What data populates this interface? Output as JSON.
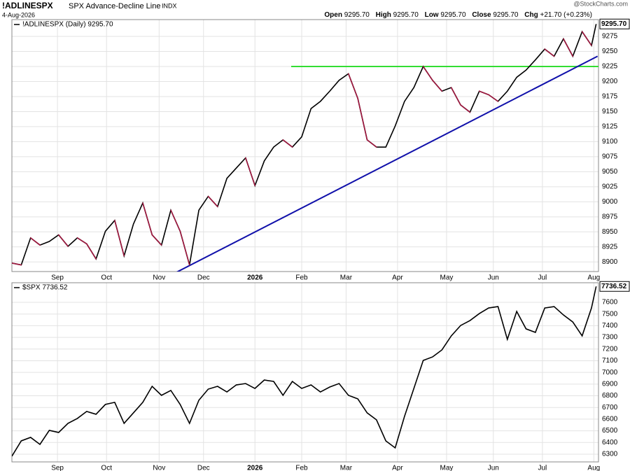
{
  "header": {
    "symbol": "!ADLINESPX",
    "name": "SPX Advance-Decline Line",
    "exchange": "INDX",
    "date": "4-Aug-2026",
    "credit": "@StockCharts.com",
    "quote": [
      {
        "label": "Open",
        "value": "9295.70"
      },
      {
        "label": "High",
        "value": "9295.70"
      },
      {
        "label": "Low",
        "value": "9295.70"
      },
      {
        "label": "Close",
        "value": "9295.70"
      },
      {
        "label": "Chg",
        "value": "+21.70 (+0.23%)"
      }
    ]
  },
  "chart_data": [
    {
      "type": "line",
      "grid": true,
      "xlim": [
        0,
        251
      ],
      "ylim": [
        8884,
        9303
      ],
      "xticks": [
        {
          "value": 19.5,
          "label": "Sep"
        },
        {
          "value": 40.5,
          "label": "Oct"
        },
        {
          "value": 63,
          "label": "Nov"
        },
        {
          "value": 82,
          "label": "Dec"
        },
        {
          "value": 104,
          "label": "2026"
        },
        {
          "value": 124,
          "label": "Feb"
        },
        {
          "value": 143,
          "label": "Mar"
        },
        {
          "value": 165,
          "label": "Apr"
        },
        {
          "value": 186,
          "label": "May"
        },
        {
          "value": 206,
          "label": "Jun"
        },
        {
          "value": 227,
          "label": "Jul"
        },
        {
          "value": 249,
          "label": "Aug"
        }
      ],
      "yticks": [
        8900,
        8925,
        8950,
        8975,
        9000,
        9025,
        9050,
        9075,
        9100,
        9125,
        9150,
        9175,
        9200,
        9225,
        9250,
        9275
      ],
      "last_value_label": "9295.70",
      "series": [
        {
          "name": "!ADLINESPX (Daily) 9295.70",
          "color": "#000000",
          "down_color": "#a0173f",
          "x": [
            0,
            4,
            8,
            12,
            16,
            20,
            24,
            28,
            32,
            36,
            40,
            44,
            48,
            52,
            56,
            60,
            64,
            68,
            72,
            76,
            80,
            84,
            88,
            92,
            96,
            100,
            104,
            108,
            112,
            116,
            120,
            124,
            128,
            132,
            136,
            140,
            144,
            148,
            152,
            156,
            160,
            164,
            168,
            172,
            176,
            180,
            184,
            188,
            192,
            196,
            200,
            204,
            208,
            212,
            216,
            220,
            224,
            228,
            232,
            236,
            240,
            244,
            248,
            250
          ],
          "values": [
            8898,
            8895,
            8940,
            8928,
            8934,
            8945,
            8926,
            8940,
            8930,
            8905,
            8951,
            8969,
            8910,
            8963,
            8998,
            8945,
            8928,
            8986,
            8951,
            8895,
            8986,
            9009,
            8992,
            9039,
            9056,
            9073,
            9027,
            9068,
            9091,
            9103,
            9091,
            9108,
            9155,
            9167,
            9184,
            9202,
            9213,
            9172,
            9103,
            9091,
            9091,
            9126,
            9167,
            9190,
            9225,
            9202,
            9184,
            9190,
            9161,
            9149,
            9184,
            9178,
            9167,
            9184,
            9207,
            9219,
            9236,
            9254,
            9242,
            9271,
            9242,
            9283,
            9260,
            9295.7
          ]
        }
      ],
      "lines": [
        {
          "color": "#33dd33",
          "x": [
            119.5,
            251
          ],
          "values": [
            9225,
            9225
          ]
        },
        {
          "color": "#1010aa",
          "x": [
            68,
            250.6
          ],
          "values": [
            8878,
            9242
          ]
        }
      ]
    },
    {
      "type": "line",
      "grid": true,
      "xlim": [
        0,
        251
      ],
      "ylim": [
        6234,
        7768
      ],
      "xticks": [
        {
          "value": 19.5,
          "label": "Sep"
        },
        {
          "value": 40.5,
          "label": "Oct"
        },
        {
          "value": 63,
          "label": "Nov"
        },
        {
          "value": 82,
          "label": "Dec"
        },
        {
          "value": 104,
          "label": "2026"
        },
        {
          "value": 124,
          "label": "Feb"
        },
        {
          "value": 143,
          "label": "Mar"
        },
        {
          "value": 165,
          "label": "Apr"
        },
        {
          "value": 186,
          "label": "May"
        },
        {
          "value": 206,
          "label": "Jun"
        },
        {
          "value": 227,
          "label": "Jul"
        },
        {
          "value": 249,
          "label": "Aug"
        }
      ],
      "yticks": [
        6300,
        6400,
        6500,
        6600,
        6700,
        6800,
        6900,
        7000,
        7100,
        7200,
        7300,
        7400,
        7500,
        7600
      ],
      "last_value_label": "7736.52",
      "series": [
        {
          "name": "$SPX 7736.52",
          "color": "#000000",
          "x": [
            0,
            4,
            8,
            12,
            16,
            20,
            24,
            28,
            32,
            36,
            40,
            44,
            48,
            52,
            56,
            60,
            64,
            68,
            72,
            76,
            80,
            84,
            88,
            92,
            96,
            100,
            104,
            108,
            112,
            116,
            120,
            124,
            128,
            132,
            136,
            140,
            144,
            148,
            152,
            156,
            160,
            164,
            168,
            172,
            176,
            180,
            184,
            188,
            192,
            196,
            200,
            204,
            208,
            212,
            216,
            220,
            224,
            228,
            232,
            236,
            240,
            244,
            248,
            250
          ],
          "values": [
            6283,
            6414,
            6444,
            6384,
            6504,
            6486,
            6564,
            6606,
            6666,
            6642,
            6726,
            6744,
            6564,
            6654,
            6744,
            6881,
            6804,
            6846,
            6726,
            6564,
            6762,
            6857,
            6881,
            6833,
            6893,
            6905,
            6863,
            6935,
            6923,
            6804,
            6923,
            6863,
            6893,
            6833,
            6875,
            6905,
            6804,
            6774,
            6654,
            6594,
            6414,
            6354,
            6624,
            6863,
            7103,
            7133,
            7193,
            7313,
            7402,
            7444,
            7504,
            7552,
            7564,
            7283,
            7522,
            7373,
            7343,
            7552,
            7564,
            7492,
            7432,
            7313,
            7552,
            7736.52
          ]
        }
      ]
    }
  ]
}
